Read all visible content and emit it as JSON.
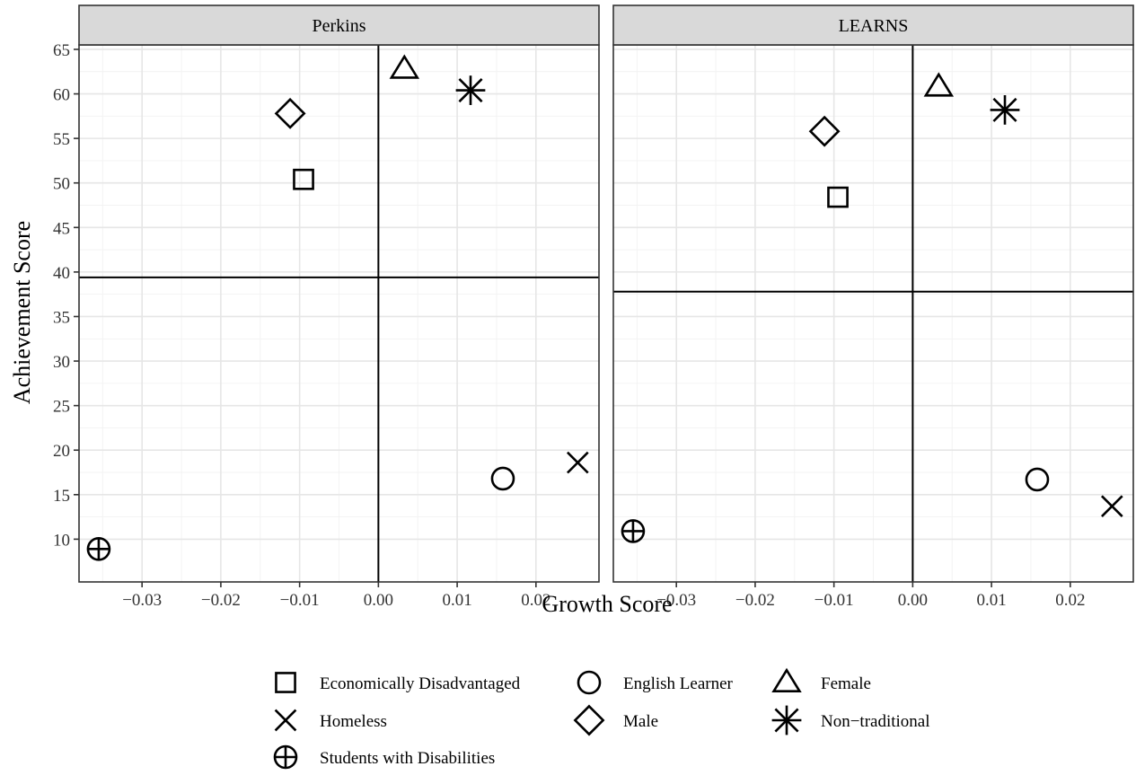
{
  "chart_data": {
    "type": "scatter",
    "xlabel": "Growth Score",
    "ylabel": "Achievement Score",
    "xlim": [
      -0.038,
      0.028
    ],
    "ylim": [
      5.2,
      65.5
    ],
    "x_ticks": [
      -0.03,
      -0.02,
      -0.01,
      0.0,
      0.01,
      0.02
    ],
    "x_tick_labels": [
      "−0.03",
      "−0.02",
      "−0.01",
      "0.00",
      "0.01",
      "0.02"
    ],
    "y_ticks": [
      10,
      15,
      20,
      25,
      30,
      35,
      40,
      45,
      50,
      55,
      60,
      65
    ],
    "y_tick_labels": [
      "10",
      "15",
      "20",
      "25",
      "30",
      "35",
      "40",
      "45",
      "50",
      "55",
      "60",
      "65"
    ],
    "grid": true,
    "legend_position": "bottom",
    "legend": [
      {
        "label": "Economically Disadvantaged",
        "shape": "square"
      },
      {
        "label": "English Learner",
        "shape": "circle"
      },
      {
        "label": "Female",
        "shape": "triangle"
      },
      {
        "label": "Homeless",
        "shape": "cross"
      },
      {
        "label": "Male",
        "shape": "diamond"
      },
      {
        "label": "Non−traditional",
        "shape": "asterisk"
      },
      {
        "label": "Students with Disabilities",
        "shape": "circle-plus"
      }
    ],
    "panels": [
      {
        "title": "Perkins",
        "vline_x": 0.0,
        "hline_y": 39.4,
        "points": [
          {
            "group": "Economically Disadvantaged",
            "shape": "square",
            "x": -0.0095,
            "y": 50.4
          },
          {
            "group": "English Learner",
            "shape": "circle",
            "x": 0.0158,
            "y": 16.8
          },
          {
            "group": "Female",
            "shape": "triangle",
            "x": 0.0033,
            "y": 62.8
          },
          {
            "group": "Homeless",
            "shape": "cross",
            "x": 0.0253,
            "y": 18.6
          },
          {
            "group": "Male",
            "shape": "diamond",
            "x": -0.0112,
            "y": 57.8
          },
          {
            "group": "Non−traditional",
            "shape": "asterisk",
            "x": 0.0117,
            "y": 60.4
          },
          {
            "group": "Students with Disabilities",
            "shape": "circle-plus",
            "x": -0.0355,
            "y": 8.9
          }
        ]
      },
      {
        "title": "LEARNS",
        "vline_x": 0.0,
        "hline_y": 37.8,
        "points": [
          {
            "group": "Economically Disadvantaged",
            "shape": "square",
            "x": -0.0095,
            "y": 48.4
          },
          {
            "group": "English Learner",
            "shape": "circle",
            "x": 0.0158,
            "y": 16.7
          },
          {
            "group": "Female",
            "shape": "triangle",
            "x": 0.0033,
            "y": 60.8
          },
          {
            "group": "Homeless",
            "shape": "cross",
            "x": 0.0253,
            "y": 13.7
          },
          {
            "group": "Male",
            "shape": "diamond",
            "x": -0.0112,
            "y": 55.8
          },
          {
            "group": "Non−traditional",
            "shape": "asterisk",
            "x": 0.0117,
            "y": 58.2
          },
          {
            "group": "Students with Disabilities",
            "shape": "circle-plus",
            "x": -0.0355,
            "y": 10.9
          }
        ]
      }
    ]
  }
}
